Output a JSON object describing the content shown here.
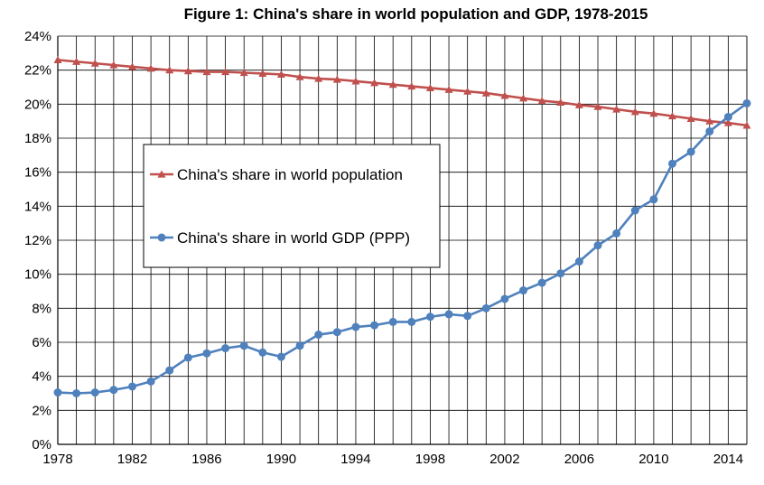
{
  "chart_data": {
    "type": "line",
    "title": "Figure 1: China's share in world population and GDP, 1978-2015",
    "xlabel": "",
    "ylabel": "",
    "x": [
      1978,
      1979,
      1980,
      1981,
      1982,
      1983,
      1984,
      1985,
      1986,
      1987,
      1988,
      1989,
      1990,
      1991,
      1992,
      1993,
      1994,
      1995,
      1996,
      1997,
      1998,
      1999,
      2000,
      2001,
      2002,
      2003,
      2004,
      2005,
      2006,
      2007,
      2008,
      2009,
      2010,
      2011,
      2012,
      2013,
      2014,
      2015
    ],
    "x_ticks": [
      "1978",
      "1982",
      "1986",
      "1990",
      "1994",
      "1998",
      "2002",
      "2006",
      "2010",
      "2014"
    ],
    "xlim": [
      1978,
      2015
    ],
    "ylim": [
      0,
      24
    ],
    "y_ticks": [
      "0%",
      "2%",
      "4%",
      "6%",
      "8%",
      "10%",
      "12%",
      "14%",
      "16%",
      "18%",
      "20%",
      "22%",
      "24%"
    ],
    "grid": true,
    "legend_placement": "center-left",
    "series": [
      {
        "name": "China's share in world population",
        "color": "#c0504d",
        "marker": "triangle",
        "values": [
          22.6,
          22.5,
          22.4,
          22.3,
          22.2,
          22.1,
          22.0,
          21.95,
          21.9,
          21.9,
          21.85,
          21.8,
          21.75,
          21.6,
          21.5,
          21.45,
          21.35,
          21.25,
          21.15,
          21.05,
          20.95,
          20.85,
          20.75,
          20.65,
          20.5,
          20.35,
          20.2,
          20.1,
          19.95,
          19.85,
          19.7,
          19.55,
          19.45,
          19.3,
          19.15,
          19.0,
          18.9,
          18.75
        ]
      },
      {
        "name": "China's share in world GDP (PPP)",
        "color": "#4f81bd",
        "marker": "circle",
        "values": [
          3.05,
          3.0,
          3.05,
          3.2,
          3.4,
          3.7,
          4.35,
          5.1,
          5.35,
          5.65,
          5.8,
          5.4,
          5.15,
          5.8,
          6.45,
          6.6,
          6.9,
          7.0,
          7.2,
          7.2,
          7.5,
          7.65,
          7.55,
          8.0,
          8.55,
          9.05,
          9.5,
          10.05,
          10.75,
          11.7,
          12.4,
          13.75,
          14.4,
          16.5,
          17.2,
          18.4,
          19.25,
          20.05
        ]
      }
    ]
  }
}
